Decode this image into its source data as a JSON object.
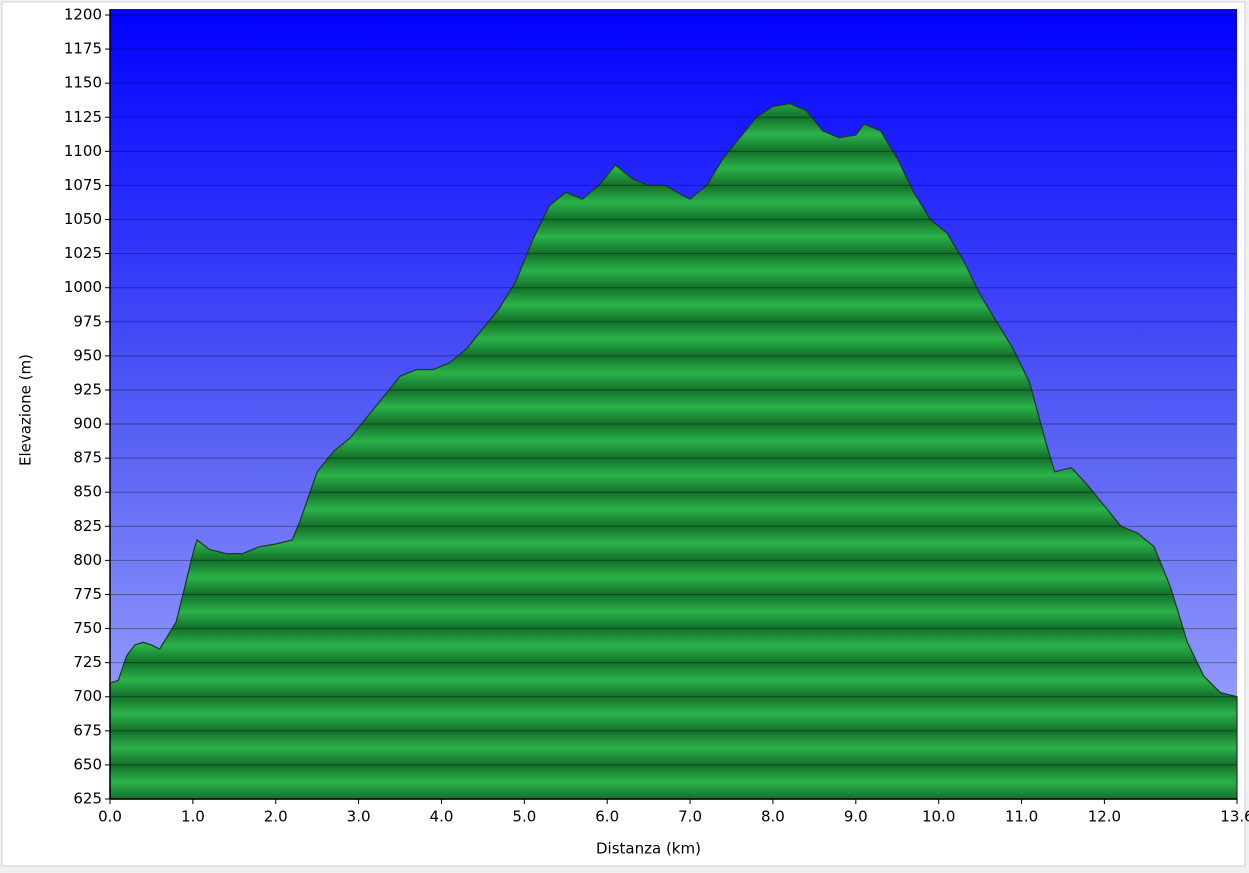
{
  "chart_data": {
    "type": "area",
    "xlabel": "Distanza   (km)",
    "ylabel": "Elevazione (m)",
    "x": [
      0,
      0.1,
      0.2,
      0.3,
      0.4,
      0.5,
      0.6,
      0.7,
      0.8,
      0.9,
      1.0,
      1.05,
      1.2,
      1.4,
      1.6,
      1.8,
      2.0,
      2.2,
      2.3,
      2.5,
      2.7,
      2.9,
      3.1,
      3.3,
      3.5,
      3.7,
      3.9,
      4.1,
      4.3,
      4.5,
      4.7,
      4.9,
      5.1,
      5.3,
      5.5,
      5.7,
      5.9,
      6.1,
      6.3,
      6.5,
      6.7,
      6.9,
      7.0,
      7.2,
      7.4,
      7.6,
      7.8,
      8.0,
      8.2,
      8.4,
      8.6,
      8.8,
      9.0,
      9.1,
      9.3,
      9.5,
      9.7,
      9.9,
      10.1,
      10.3,
      10.5,
      10.7,
      10.9,
      11.1,
      11.3,
      11.4,
      11.6,
      11.8,
      12.0,
      12.2,
      12.4,
      12.6,
      12.8,
      13.0,
      13.2,
      13.4,
      13.6
    ],
    "values": [
      710,
      712,
      730,
      738,
      740,
      738,
      735,
      745,
      755,
      780,
      805,
      815,
      808,
      805,
      805,
      810,
      812,
      815,
      830,
      865,
      880,
      890,
      905,
      920,
      935,
      940,
      940,
      945,
      955,
      970,
      985,
      1005,
      1035,
      1060,
      1070,
      1065,
      1075,
      1090,
      1080,
      1075,
      1075,
      1068,
      1065,
      1075,
      1095,
      1110,
      1125,
      1133,
      1135,
      1130,
      1115,
      1110,
      1112,
      1120,
      1115,
      1095,
      1070,
      1050,
      1040,
      1020,
      995,
      975,
      955,
      930,
      885,
      865,
      868,
      855,
      840,
      825,
      820,
      810,
      780,
      740,
      715,
      703,
      700
    ],
    "color": "#1e9e3c",
    "xlim": [
      0,
      13.6
    ],
    "ylim": [
      625,
      1200
    ],
    "xticks": [
      {
        "value": 0,
        "label": "0.0"
      },
      {
        "value": 1,
        "label": "1.0"
      },
      {
        "value": 2,
        "label": "2.0"
      },
      {
        "value": 3,
        "label": "3.0"
      },
      {
        "value": 4,
        "label": "4.0"
      },
      {
        "value": 5,
        "label": "5.0"
      },
      {
        "value": 6,
        "label": "6.0"
      },
      {
        "value": 7,
        "label": "7.0"
      },
      {
        "value": 8,
        "label": "8.0"
      },
      {
        "value": 9,
        "label": "9.0"
      },
      {
        "value": 10,
        "label": "10.0"
      },
      {
        "value": 11,
        "label": "11.0"
      },
      {
        "value": 12,
        "label": "12.0"
      },
      13.6
    ],
    "yticks": [
      625,
      650,
      675,
      700,
      725,
      750,
      775,
      800,
      825,
      850,
      875,
      900,
      925,
      950,
      975,
      1000,
      1025,
      1050,
      1075,
      1100,
      1125,
      1150,
      1175,
      1200
    ],
    "grid": true
  }
}
